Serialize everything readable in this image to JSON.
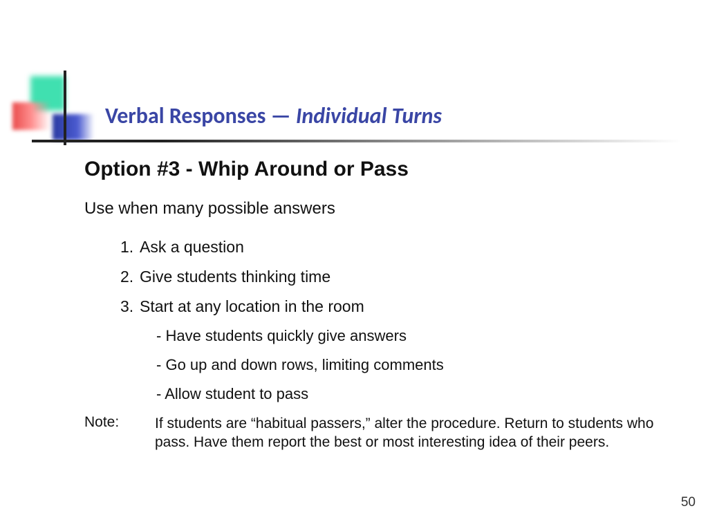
{
  "colors": {
    "title": "#3a46a5",
    "accent_green": "#40e0b0",
    "accent_red": "#e94b4b",
    "accent_blue": "#2a3aa0",
    "text": "#111111",
    "background": "#ffffff"
  },
  "title": {
    "part1": "Verbal Responses — ",
    "part2_italic": "Individual Turns",
    "fontsize": 32
  },
  "subtitle": "Option #3 - Whip Around or Pass",
  "lead": "Use when many possible answers",
  "steps": [
    "Ask a question",
    "Give students thinking time",
    "Start at any location in the room"
  ],
  "substeps": [
    "Have students quickly give answers",
    "Go up and down rows, limiting comments",
    "Allow student to pass"
  ],
  "note": {
    "label": "Note:",
    "body": "If students are “habitual passers,” alter the procedure. Return to students who pass. Have them report the best or most interesting idea of their peers."
  },
  "page_number": "50"
}
